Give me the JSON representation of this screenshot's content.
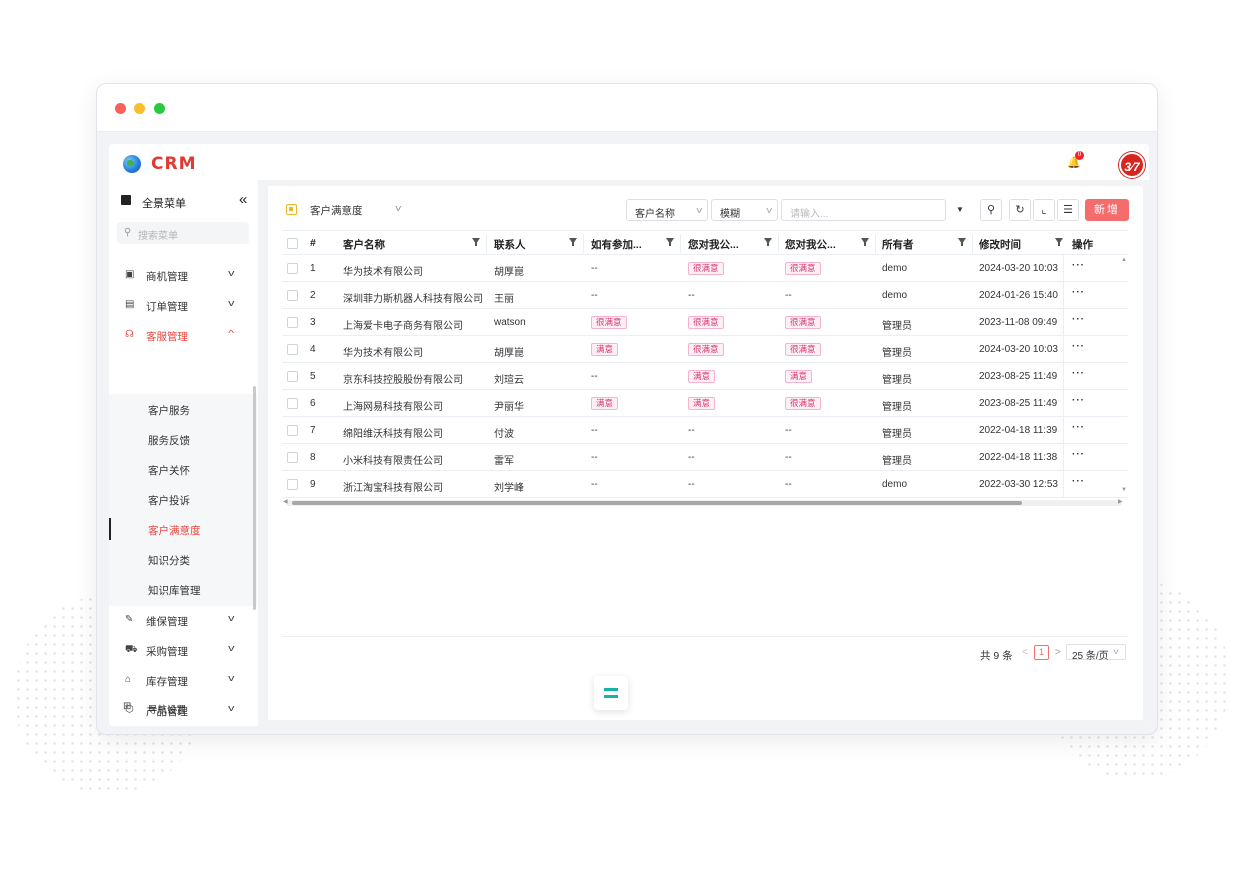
{
  "app": {
    "logo_text": "CRM",
    "notification_count": "0",
    "avatar_text": "3⁄7"
  },
  "sidebar": {
    "all_menu_label": "全景菜单",
    "collapse_icon": "«",
    "search_placeholder": "搜索菜单",
    "items": [
      {
        "label": "商机管理",
        "icon": "briefcase-icon"
      },
      {
        "label": "订单管理",
        "icon": "document-icon"
      },
      {
        "label": "客服管理",
        "icon": "headset-icon",
        "open": true
      },
      {
        "label": "维保管理",
        "icon": "wrench-icon"
      },
      {
        "label": "采购管理",
        "icon": "cart-icon"
      },
      {
        "label": "库存管理",
        "icon": "warehouse-icon"
      },
      {
        "label": "产品管理",
        "icon": "box-icon"
      }
    ],
    "sub_items": [
      {
        "label": "客户服务"
      },
      {
        "label": "服务反馈"
      },
      {
        "label": "客户关怀"
      },
      {
        "label": "客户投诉"
      },
      {
        "label": "客户满意度",
        "active": true
      },
      {
        "label": "知识分类"
      },
      {
        "label": "知识库管理"
      }
    ],
    "settings_label": "导航设置"
  },
  "toolbar": {
    "view_name": "客户满意度",
    "filter_field": "客户名称",
    "filter_mode": "模糊",
    "filter_placeholder": "请输入...",
    "add_label": "新增",
    "accent_color": "#f56c6c"
  },
  "table": {
    "headers": [
      "#",
      "客户名称",
      "联系人",
      "如有参加...",
      "您对我公...",
      "您对我公...",
      "所有者",
      "修改时间",
      "操作"
    ],
    "rows": [
      {
        "n": "1",
        "name": "华为技术有限公司",
        "contact": "胡厚崑",
        "q1": "--",
        "q2": "很满意",
        "q3": "很满意",
        "owner": "demo",
        "time": "2024-03-20 10:03"
      },
      {
        "n": "2",
        "name": "深圳菲力斯机器人科技有限公司",
        "contact": "王丽",
        "q1": "--",
        "q2": "--",
        "q3": "--",
        "owner": "demo",
        "time": "2024-01-26 15:40"
      },
      {
        "n": "3",
        "name": "上海爱卡电子商务有限公司",
        "contact": "watson",
        "q1": "很满意",
        "q2": "很满意",
        "q3": "很满意",
        "owner": "管理员",
        "time": "2023-11-08 09:49"
      },
      {
        "n": "4",
        "name": "华为技术有限公司",
        "contact": "胡厚崑",
        "q1": "满意",
        "q2": "很满意",
        "q3": "很满意",
        "owner": "管理员",
        "time": "2024-03-20 10:03"
      },
      {
        "n": "5",
        "name": "京东科技控股股份有限公司",
        "contact": "刘瑄云",
        "q1": "--",
        "q2": "满意",
        "q3": "满意",
        "owner": "管理员",
        "time": "2023-08-25 11:49"
      },
      {
        "n": "6",
        "name": "上海网易科技有限公司",
        "contact": "尹丽华",
        "q1": "满意",
        "q2": "满意",
        "q3": "很满意",
        "owner": "管理员",
        "time": "2023-08-25 11:49"
      },
      {
        "n": "7",
        "name": "绵阳维沃科技有限公司",
        "contact": "付波",
        "q1": "--",
        "q2": "--",
        "q3": "--",
        "owner": "管理员",
        "time": "2022-04-18 11:39"
      },
      {
        "n": "8",
        "name": "小米科技有限责任公司",
        "contact": "雷军",
        "q1": "--",
        "q2": "--",
        "q3": "--",
        "owner": "管理员",
        "time": "2022-04-18 11:38"
      },
      {
        "n": "9",
        "name": "浙江淘宝科技有限公司",
        "contact": "刘学峰",
        "q1": "--",
        "q2": "--",
        "q3": "--",
        "owner": "demo",
        "time": "2022-03-30 12:53"
      }
    ],
    "more_label": "···"
  },
  "pager": {
    "total": "共 9 条",
    "current_page": "1",
    "page_size": "25 条/页"
  }
}
